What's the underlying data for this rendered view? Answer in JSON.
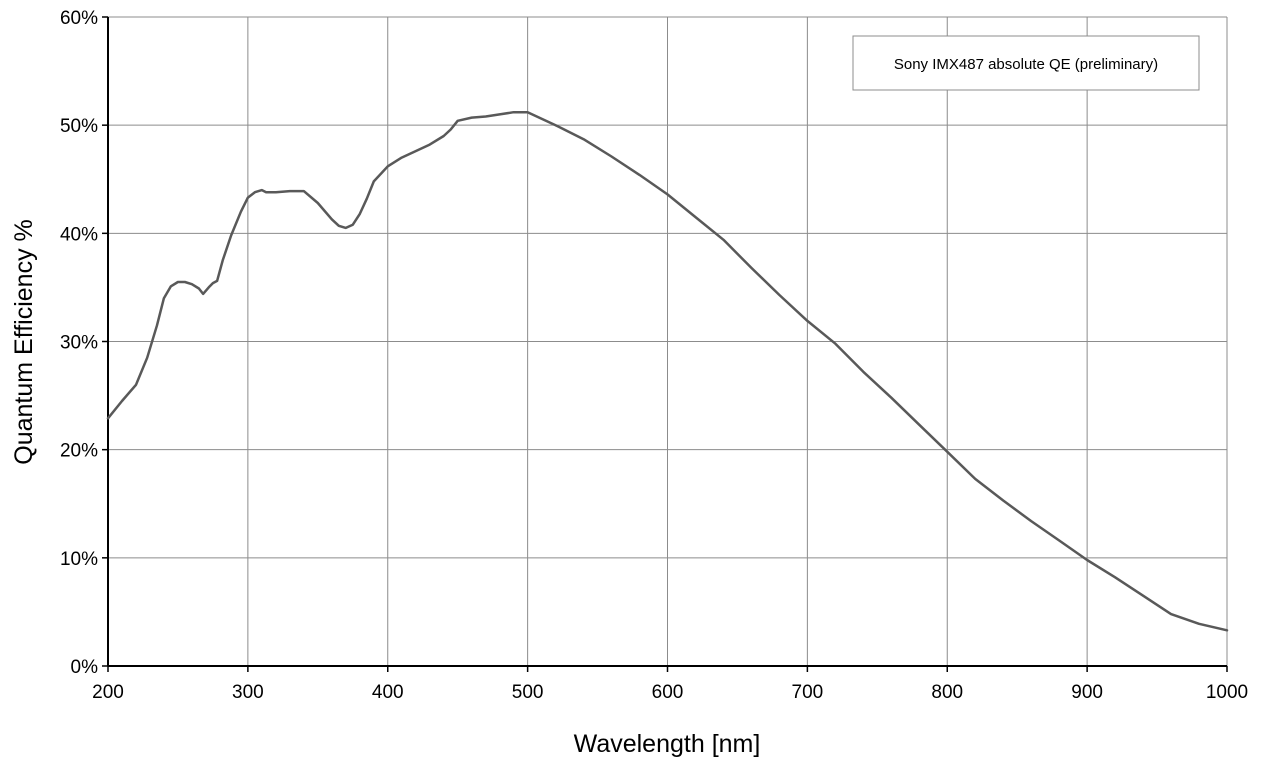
{
  "chart_data": {
    "type": "line",
    "title": "",
    "xlabel": "Wavelength [nm]",
    "ylabel": "Quantum Efficiency %",
    "xlim": [
      200,
      1000
    ],
    "ylim": [
      0,
      60
    ],
    "x_ticks": [
      200,
      300,
      400,
      500,
      600,
      700,
      800,
      900,
      1000
    ],
    "x_tick_labels": [
      "200",
      "300",
      "400",
      "500",
      "600",
      "700",
      "800",
      "900",
      "1000"
    ],
    "y_ticks": [
      0,
      10,
      20,
      30,
      40,
      50,
      60
    ],
    "y_tick_labels": [
      "0%",
      "10%",
      "20%",
      "30%",
      "40%",
      "50%",
      "60%"
    ],
    "grid": true,
    "legend_position": "top-right",
    "series": [
      {
        "name": "Sony IMX487 absolute QE (preliminary)",
        "color": "#595959",
        "x": [
          200,
          210,
          220,
          228,
          235,
          240,
          245,
          250,
          255,
          260,
          265,
          268,
          272,
          275,
          278,
          282,
          288,
          295,
          300,
          305,
          310,
          313,
          320,
          330,
          340,
          350,
          360,
          365,
          370,
          375,
          380,
          385,
          390,
          400,
          410,
          420,
          430,
          440,
          445,
          450,
          460,
          470,
          480,
          490,
          500,
          520,
          540,
          560,
          580,
          600,
          620,
          640,
          660,
          680,
          700,
          720,
          740,
          760,
          780,
          800,
          820,
          840,
          860,
          880,
          900,
          920,
          940,
          960,
          980,
          1000
        ],
        "values": [
          22.9,
          24.5,
          26.0,
          28.5,
          31.5,
          34.0,
          35.1,
          35.5,
          35.5,
          35.3,
          34.9,
          34.4,
          35.0,
          35.4,
          35.6,
          37.5,
          39.8,
          42.0,
          43.3,
          43.8,
          44.0,
          43.8,
          43.8,
          43.9,
          43.9,
          42.8,
          41.3,
          40.7,
          40.5,
          40.8,
          41.8,
          43.2,
          44.8,
          46.2,
          47.0,
          47.6,
          48.2,
          49.0,
          49.6,
          50.4,
          50.7,
          50.8,
          51.0,
          51.2,
          51.2,
          50.0,
          48.7,
          47.1,
          45.4,
          43.6,
          41.5,
          39.4,
          36.8,
          34.3,
          31.9,
          29.8,
          27.2,
          24.8,
          22.3,
          19.8,
          17.3,
          15.3,
          13.4,
          11.6,
          9.8,
          8.2,
          6.5,
          4.8,
          3.9,
          3.3
        ]
      }
    ],
    "legend": {
      "entries": [
        "Sony IMX487 absolute QE (preliminary)"
      ]
    }
  }
}
